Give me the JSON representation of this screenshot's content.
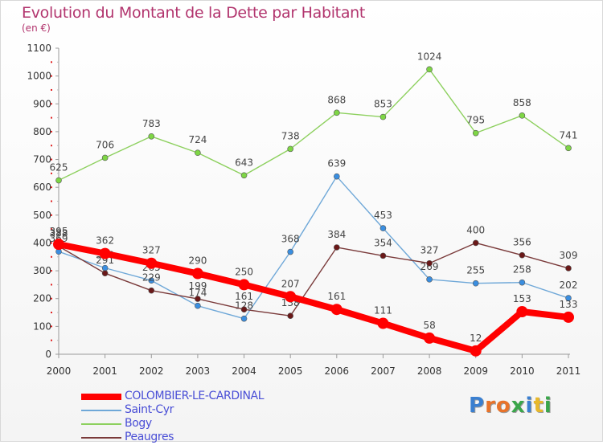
{
  "title": "Evolution du Montant de la Dette par Habitant",
  "subtitle": "(en €)",
  "logo": {
    "text": "Proxiti",
    "letter_colors": [
      "#3a7fd0",
      "#e8732a",
      "#e8732a",
      "#3aa64a",
      "#3a7fd0",
      "#e8b82a",
      "#3aa64a"
    ]
  },
  "chart_data": {
    "type": "line",
    "x": [
      "2000",
      "2001",
      "2002",
      "2003",
      "2004",
      "2005",
      "2006",
      "2007",
      "2008",
      "2009",
      "2010",
      "2011"
    ],
    "ylim": [
      0,
      1100
    ],
    "yticks": [
      "0",
      "100",
      "200",
      "300",
      "400",
      "500",
      "600",
      "700",
      "800",
      "900",
      "1000",
      "1100"
    ],
    "grid": false,
    "legend_position": "bottom-left",
    "series": [
      {
        "name": "Bogy",
        "color": "#8dd05e",
        "point_color": "#7ed645",
        "values": [
          625,
          706,
          783,
          724,
          643,
          738,
          868,
          853,
          1024,
          795,
          858,
          741
        ],
        "labels": [
          "625",
          "706",
          "783",
          "724",
          "643",
          "738",
          "868",
          "853",
          "1024",
          "795",
          "858",
          "741"
        ]
      },
      {
        "name": "Saint-Cyr",
        "color": "#6fa8d8",
        "point_color": "#3a8ee0",
        "values": [
          369,
          310,
          265,
          174,
          128,
          368,
          639,
          453,
          269,
          255,
          258,
          202
        ],
        "labels": [
          "369",
          "310",
          "265",
          "174",
          "128",
          "368",
          "639",
          "453",
          "269",
          "255",
          "258",
          "202"
        ]
      },
      {
        "name": "Peaugres",
        "color": "#7a3a3a",
        "point_color": "#6a1818",
        "values": [
          388,
          291,
          229,
          199,
          161,
          138,
          384,
          354,
          327,
          400,
          356,
          309
        ],
        "labels": [
          "388",
          "291",
          "229",
          "199",
          "161",
          "138",
          "384",
          "354",
          "327",
          "400",
          "356",
          "309"
        ]
      },
      {
        "name": "COLOMBIER-LE-CARDINAL",
        "color": "#ff0000",
        "point_color": "#ff0000",
        "values": [
          395,
          362,
          327,
          290,
          250,
          207,
          161,
          111,
          58,
          12,
          153,
          133
        ],
        "labels": [
          "395",
          "362",
          "327",
          "290",
          "250",
          "207",
          "161",
          "111",
          "58",
          "12",
          "153",
          "133"
        ]
      }
    ],
    "legend": [
      {
        "name": "COLOMBIER-LE-CARDINAL",
        "color": "#ff0000"
      },
      {
        "name": "Saint-Cyr",
        "color": "#6fa8d8"
      },
      {
        "name": "Bogy",
        "color": "#8dd05e"
      },
      {
        "name": "Peaugres",
        "color": "#7a3a3a"
      }
    ]
  }
}
